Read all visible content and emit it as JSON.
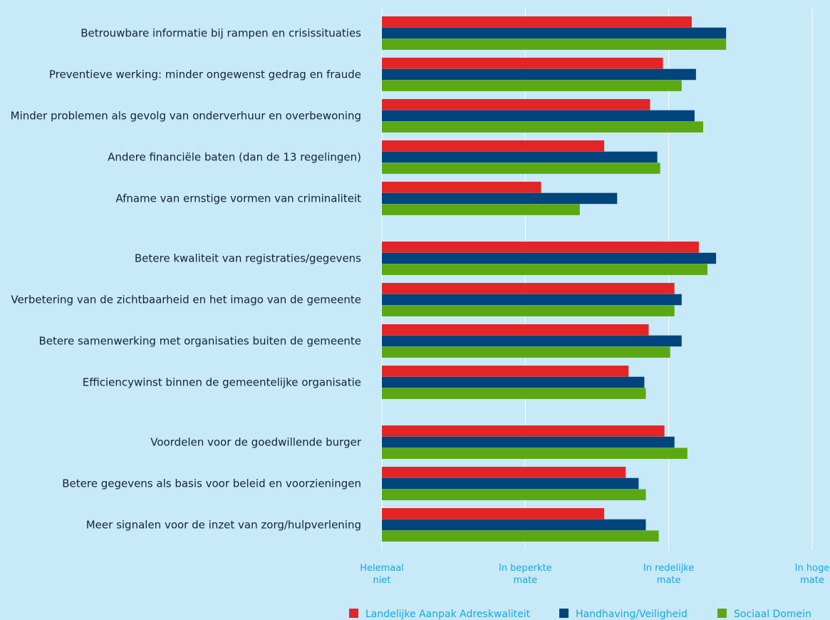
{
  "chart_data": {
    "type": "bar",
    "orientation": "horizontal",
    "categories": [
      "Betrouwbare informatie bij rampen en crisissituaties",
      "Preventieve werking: minder ongewenst gedrag en fraude",
      "Minder problemen als gevolg van onderverhuur en overbewoning",
      "Andere financiële baten (dan de 13 regelingen)",
      "Afname van ernstige vormen van criminaliteit",
      "Betere kwaliteit van registraties/gegevens",
      "Verbetering van de zichtbaarheid en het imago van de gemeente",
      "Betere samenwerking met organisaties buiten de gemeente",
      "Efficiencywinst binnen de gemeentelijke organisatie",
      "Voordelen voor de goedwillende burger",
      "Betere gegevens als basis voor beleid en voorzieningen",
      "Meer signalen voor de inzet van zorg/hulpverlening"
    ],
    "groups": [
      [
        0,
        1,
        2,
        3,
        4
      ],
      [
        5,
        6,
        7,
        8
      ],
      [
        9,
        10,
        11
      ]
    ],
    "series": [
      {
        "name": "Landelijke Aanpak Adreskwaliteit",
        "color": "#e42528",
        "values": [
          3.16,
          2.96,
          2.87,
          2.55,
          2.11,
          3.21,
          3.04,
          2.86,
          2.72,
          2.97,
          2.7,
          2.55
        ]
      },
      {
        "name": "Handhaving/Veiligheid",
        "color": "#00457c",
        "values": [
          3.4,
          3.19,
          3.18,
          2.92,
          2.64,
          3.33,
          3.09,
          3.09,
          2.83,
          3.04,
          2.79,
          2.84
        ]
      },
      {
        "name": "Sociaal Domein",
        "color": "#5ba814",
        "values": [
          3.4,
          3.09,
          3.24,
          2.94,
          2.38,
          3.27,
          3.04,
          3.01,
          2.84,
          3.13,
          2.84,
          2.93
        ]
      }
    ],
    "xlim": [
      1,
      4
    ],
    "ticks": [
      {
        "value": 1,
        "label": [
          "Helemaal",
          "niet"
        ]
      },
      {
        "value": 2,
        "label": [
          "In beperkte",
          "mate"
        ]
      },
      {
        "value": 3,
        "label": [
          "In redelijke",
          "mate"
        ]
      },
      {
        "value": 4,
        "label": [
          "In hoge",
          "mate"
        ]
      }
    ],
    "grid": true,
    "legend_position": "bottom-right",
    "colors": {
      "background": "#c7e9f8",
      "grid": "#ffffff",
      "tick_text": "#1aa6e0",
      "label_text": "#14213d"
    }
  }
}
